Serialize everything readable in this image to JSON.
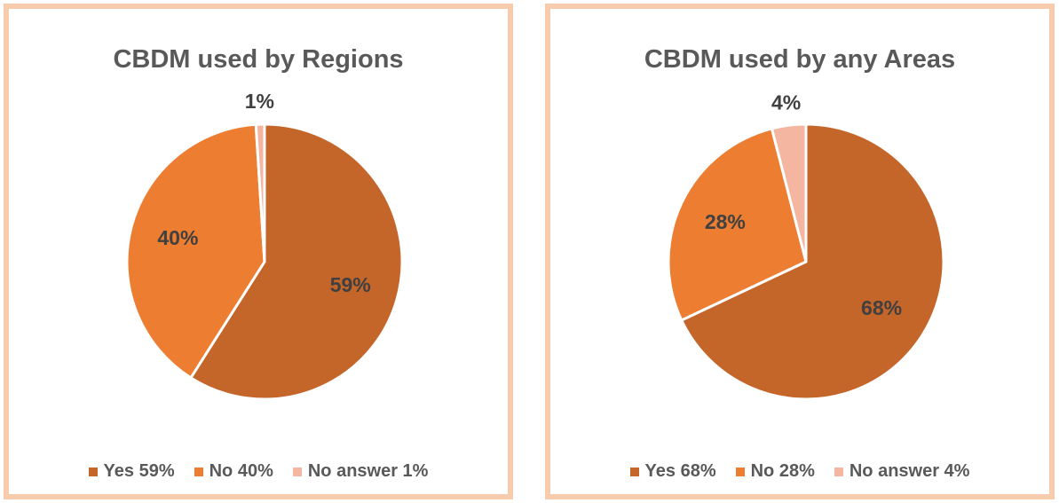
{
  "chart_data": [
    {
      "type": "pie",
      "title": "CBDM used by Regions",
      "categories": [
        "Yes 59%",
        "No 40%",
        "No answer 1%"
      ],
      "values": [
        59,
        40,
        1
      ],
      "value_labels": [
        "59%",
        "40%",
        "1%"
      ],
      "colors": [
        "#c4652a",
        "#ed7d31",
        "#f4b6a0"
      ]
    },
    {
      "type": "pie",
      "title": "CBDM used by any Areas",
      "categories": [
        "Yes 68%",
        "No 28%",
        "No answer 4%"
      ],
      "values": [
        68,
        28,
        4
      ],
      "value_labels": [
        "68%",
        "28%",
        "4%"
      ],
      "colors": [
        "#c4652a",
        "#ed7d31",
        "#f4b6a0"
      ]
    }
  ]
}
